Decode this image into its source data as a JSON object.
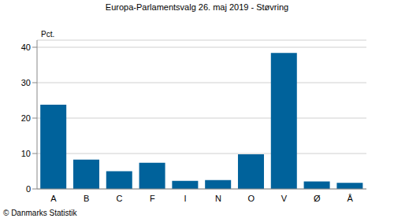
{
  "chart_data": {
    "type": "bar",
    "title": "Europa-Parlamentsvalg 26. maj 2019 - Støvring",
    "y_label": "Pct.",
    "source": "© Danmarks Statistik",
    "categories": [
      "A",
      "B",
      "C",
      "F",
      "I",
      "N",
      "O",
      "V",
      "Ø",
      "Å"
    ],
    "values": [
      23.8,
      8.3,
      5.0,
      7.4,
      2.3,
      2.5,
      9.8,
      38.4,
      2.1,
      1.7
    ],
    "color": "#00629b",
    "ylim": [
      0,
      42
    ],
    "yticks": [
      0,
      10,
      20,
      30,
      40
    ],
    "grid": true
  }
}
